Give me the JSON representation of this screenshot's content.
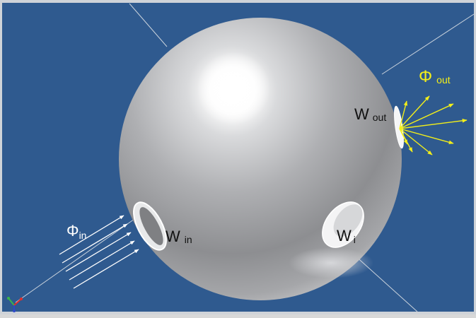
{
  "colors": {
    "background": "#2f5a8f",
    "frame": "#cfd3d8",
    "axis_line": "#c9d2dc",
    "incoming_arrows": "#ffffff",
    "outgoing_arrows": "#f2ee1a",
    "label_dark": "#111111",
    "label_light": "#ffffff",
    "label_yellow": "#f2ee1a"
  },
  "labels": {
    "phi_in": {
      "symbol": "Φ",
      "sub": "in"
    },
    "phi_out": {
      "symbol": "Φ",
      "sub": "out"
    },
    "w_in": {
      "symbol": "W",
      "sub": "in"
    },
    "w_out": {
      "symbol": "W",
      "sub": "out"
    },
    "w_i": {
      "symbol": "W",
      "sub": "i"
    }
  },
  "icons": {
    "sphere": "integrating-sphere",
    "triad": "xyz-axis-triad-icon"
  }
}
